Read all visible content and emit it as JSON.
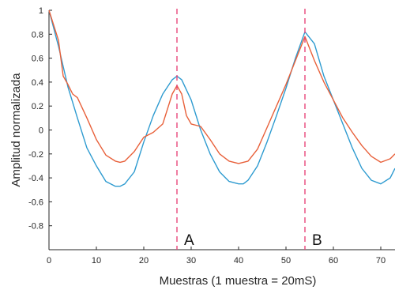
{
  "chart_data": {
    "type": "line",
    "title": "",
    "xlabel": "Muestras (1 muestra = 20mS)",
    "ylabel": "Amplitud normalizada",
    "xlim": [
      0,
      73
    ],
    "ylim": [
      -1,
      1
    ],
    "x_ticks": [
      "0",
      "10",
      "20",
      "30",
      "40",
      "50",
      "60",
      "70"
    ],
    "y_ticks": [
      "1",
      "0.8",
      "0.6",
      "0.4",
      "0.2",
      "0",
      "-0.2",
      "-0.4",
      "-0.6",
      "-0.8"
    ],
    "grid": false,
    "legend": "none",
    "colors": {
      "series_1": "#2e9bd0",
      "series_2": "#e8603a",
      "marker_line": "#e8467a"
    },
    "series": [
      {
        "x": [
          0,
          2,
          4,
          6,
          8,
          10,
          12,
          14,
          15,
          16,
          18,
          20,
          22,
          24,
          26,
          27,
          28,
          30,
          32,
          34,
          36,
          38,
          40,
          41,
          42,
          44,
          46,
          48,
          50,
          52,
          54,
          56,
          58,
          60,
          62,
          64,
          66,
          68,
          70,
          72,
          73
        ],
        "values": [
          1.0,
          0.7,
          0.36,
          0.1,
          -0.15,
          -0.3,
          -0.43,
          -0.47,
          -0.47,
          -0.45,
          -0.35,
          -0.1,
          0.12,
          0.3,
          0.42,
          0.45,
          0.42,
          0.25,
          0.0,
          -0.2,
          -0.35,
          -0.43,
          -0.45,
          -0.45,
          -0.42,
          -0.3,
          -0.1,
          0.12,
          0.35,
          0.6,
          0.82,
          0.72,
          0.45,
          0.25,
          0.05,
          -0.15,
          -0.32,
          -0.42,
          -0.45,
          -0.4,
          -0.32
        ]
      },
      {
        "x": [
          0,
          2,
          3,
          4,
          5,
          6,
          8,
          10,
          12,
          14,
          15,
          16,
          18,
          20,
          22,
          24,
          26,
          27,
          28,
          29,
          30,
          32,
          34,
          36,
          38,
          40,
          42,
          44,
          46,
          48,
          50,
          52,
          54,
          56,
          58,
          60,
          62,
          64,
          66,
          68,
          70,
          72,
          73
        ],
        "values": [
          1.0,
          0.75,
          0.45,
          0.38,
          0.3,
          0.27,
          0.1,
          -0.08,
          -0.21,
          -0.26,
          -0.27,
          -0.26,
          -0.18,
          -0.06,
          -0.02,
          0.05,
          0.3,
          0.37,
          0.3,
          0.12,
          0.05,
          0.03,
          -0.08,
          -0.2,
          -0.26,
          -0.28,
          -0.26,
          -0.16,
          0.02,
          0.2,
          0.38,
          0.58,
          0.78,
          0.58,
          0.4,
          0.25,
          0.1,
          -0.02,
          -0.13,
          -0.22,
          -0.27,
          -0.24,
          -0.2
        ]
      }
    ],
    "annotations": [
      {
        "label": "A",
        "x": 27
      },
      {
        "label": "B",
        "x": 54
      }
    ]
  }
}
